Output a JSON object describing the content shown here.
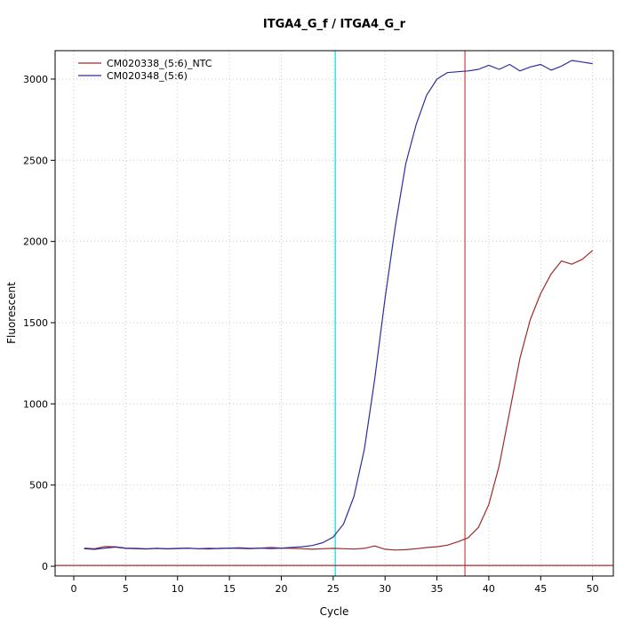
{
  "chart_data": {
    "type": "line",
    "title": "ITGA4_G_f / ITGA4_G_r",
    "xlabel": "Cycle",
    "ylabel": "Fluorescent",
    "grid": true,
    "legend_position": "top-left",
    "xlim": [
      -1.8,
      52
    ],
    "ylim": [
      -60,
      3175
    ],
    "x_ticks": [
      0,
      5,
      10,
      15,
      20,
      25,
      30,
      35,
      40,
      45,
      50
    ],
    "y_ticks": [
      0,
      500,
      1000,
      1500,
      2000,
      2500,
      3000
    ],
    "x": [
      1,
      2,
      3,
      4,
      5,
      6,
      7,
      8,
      9,
      10,
      11,
      12,
      13,
      14,
      15,
      16,
      17,
      18,
      19,
      20,
      21,
      22,
      23,
      24,
      25,
      26,
      27,
      28,
      29,
      30,
      31,
      32,
      33,
      34,
      35,
      36,
      37,
      38,
      39,
      40,
      41,
      42,
      43,
      44,
      45,
      46,
      47,
      48,
      49,
      50
    ],
    "series": [
      {
        "name": "CM020338_(5:6)_NTC",
        "color": "#9e2b2b",
        "values": [
          112,
          108,
          122,
          120,
          112,
          110,
          108,
          110,
          108,
          110,
          112,
          108,
          106,
          110,
          112,
          114,
          110,
          112,
          108,
          112,
          110,
          108,
          105,
          108,
          110,
          108,
          106,
          110,
          125,
          105,
          100,
          102,
          108,
          115,
          120,
          130,
          150,
          175,
          240,
          380,
          620,
          950,
          1280,
          1520,
          1680,
          1800,
          1880,
          1860,
          1890,
          1945
        ]
      },
      {
        "name": "CM020348_(5:6)",
        "color": "#2e2e9e",
        "values": [
          108,
          104,
          112,
          118,
          110,
          108,
          106,
          110,
          107,
          109,
          111,
          108,
          110,
          109,
          112,
          110,
          108,
          112,
          115,
          112,
          116,
          120,
          128,
          145,
          180,
          260,
          430,
          720,
          1150,
          1650,
          2100,
          2480,
          2720,
          2900,
          3000,
          3040,
          3045,
          3050,
          3060,
          3085,
          3060,
          3090,
          3050,
          3075,
          3090,
          3055,
          3080,
          3115,
          3105,
          3095
        ]
      }
    ],
    "vlines": [
      {
        "x": 25.2,
        "color": "#00dede",
        "name": "threshold-cycle-line-blue"
      },
      {
        "x": 37.7,
        "color": "#cc4343",
        "name": "threshold-cycle-line-red"
      }
    ],
    "hlines": [
      {
        "y": 5,
        "color": "#a83030",
        "name": "baseline-threshold-line"
      }
    ],
    "grid_color": "#c9c9c9",
    "axis_color": "#000000"
  }
}
